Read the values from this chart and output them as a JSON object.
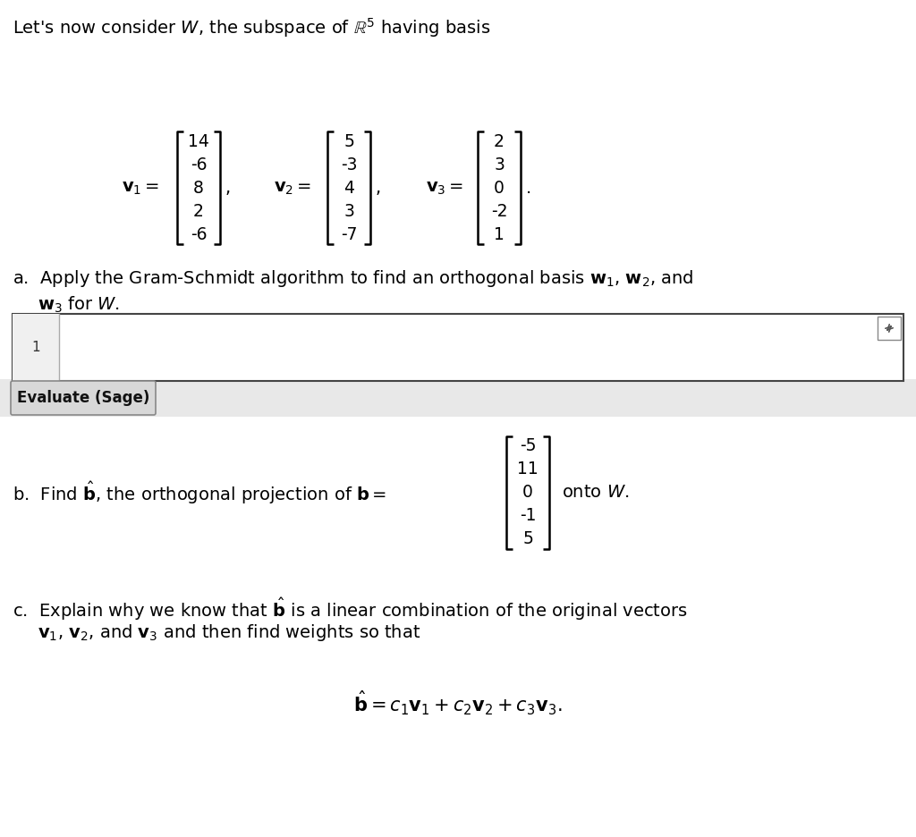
{
  "bg_color": "#ffffff",
  "title_line": "Let's now consider $W$, the subspace of $\\mathbb{R}^5$ having basis",
  "v1": [
    "14",
    "-6",
    "8",
    "2",
    "-6"
  ],
  "v2": [
    "5",
    "-3",
    "4",
    "3",
    "-7"
  ],
  "v3": [
    "2",
    "3",
    "0",
    "-2",
    "1"
  ],
  "b_vec": [
    "-5",
    "11",
    "0",
    "-1",
    "5"
  ],
  "evaluate_btn": "Evaluate (Sage)",
  "part_a_text1": "a.  Apply the Gram-Schmidt algorithm to find an orthogonal basis $\\mathbf{w}_1$, $\\mathbf{w}_2$, and",
  "part_a_text2": "$\\mathbf{w}_3$ for $W$.",
  "part_b_prefix": "b.  Find $\\hat{\\mathbf{b}}$, the orthogonal projection of $\\mathbf{b} =$",
  "part_b_suffix": "onto $W$.",
  "part_c_text1": "c.  Explain why we know that $\\hat{\\mathbf{b}}$ is a linear combination of the original vectors",
  "part_c_text2": "$\\mathbf{v}_1$, $\\mathbf{v}_2$, and $\\mathbf{v}_3$ and then find weights so that",
  "part_c_eq": "$\\hat{\\mathbf{b}} = c_1\\mathbf{v}_1 + c_2\\mathbf{v}_2 + c_3\\mathbf{v}_3.$",
  "gray_color": "#e8e8e8",
  "btn_bg": "#d8d8d8",
  "box_border": "#555555",
  "cell_num_bg": "#f0f0f0"
}
